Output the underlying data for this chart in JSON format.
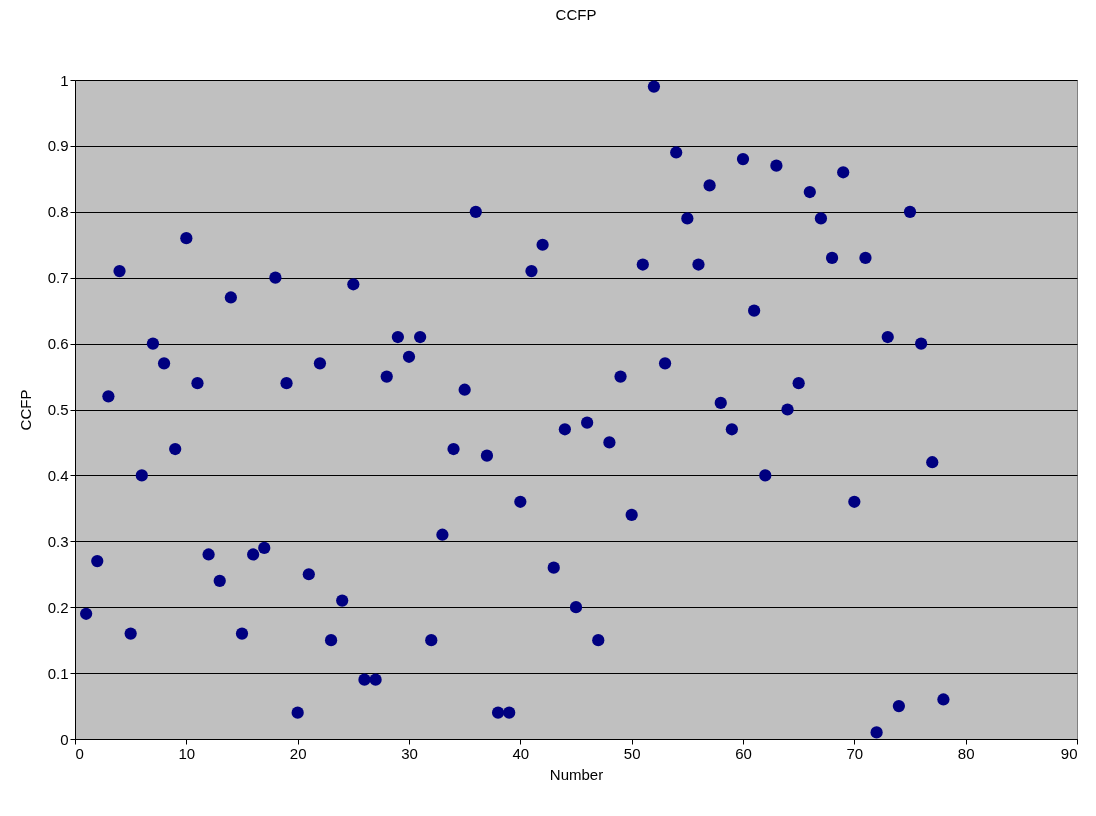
{
  "chart_data": {
    "type": "scatter",
    "title": "CCFP",
    "xlabel": "Number",
    "ylabel": "CCFP",
    "x": [
      1,
      2,
      3,
      4,
      5,
      6,
      7,
      8,
      9,
      10,
      11,
      12,
      13,
      14,
      15,
      16,
      17,
      18,
      19,
      20,
      21,
      22,
      23,
      24,
      25,
      26,
      27,
      28,
      29,
      30,
      31,
      32,
      33,
      34,
      35,
      36,
      37,
      38,
      39,
      40,
      41,
      42,
      43,
      44,
      45,
      46,
      47,
      48,
      49,
      50,
      51,
      52,
      53,
      54,
      55,
      56,
      57,
      58,
      59,
      60,
      61,
      62,
      63,
      64,
      65,
      66,
      67,
      68,
      69,
      70,
      71,
      72,
      73,
      74,
      75,
      76,
      77,
      78
    ],
    "series": [
      {
        "color": "#000080",
        "values": [
          0.19,
          0.27,
          0.52,
          0.71,
          0.16,
          0.4,
          0.6,
          0.57,
          0.44,
          0.76,
          0.54,
          0.28,
          0.24,
          0.67,
          0.16,
          0.28,
          0.29,
          0.7,
          0.54,
          0.04,
          0.25,
          0.57,
          0.15,
          0.21,
          0.69,
          0.09,
          0.09,
          0.55,
          0.61,
          0.58,
          0.61,
          0.15,
          0.31,
          0.44,
          0.53,
          0.8,
          0.43,
          0.04,
          0.04,
          0.36,
          0.71,
          0.75,
          0.26,
          0.47,
          0.2,
          0.48,
          0.15,
          0.45,
          0.55,
          0.34,
          0.72,
          0.99,
          0.57,
          0.89,
          0.79,
          0.72,
          0.84,
          0.51,
          0.47,
          0.88,
          0.65,
          0.4,
          0.87,
          0.5,
          0.54,
          0.83,
          0.79,
          0.73,
          0.86,
          0.36,
          0.73,
          0.01,
          0.61,
          0.05,
          0.8,
          0.6,
          0.42,
          0.06
        ]
      }
    ],
    "xlim": [
      0,
      90
    ],
    "xticks": [
      0,
      10,
      20,
      30,
      40,
      50,
      60,
      70,
      80,
      90
    ],
    "ylim": [
      0,
      1
    ],
    "yticks": [
      0,
      0.1,
      0.2,
      0.3,
      0.4,
      0.5,
      0.6,
      0.7,
      0.8,
      0.9,
      1
    ],
    "grid": "y",
    "marker": "circle"
  }
}
